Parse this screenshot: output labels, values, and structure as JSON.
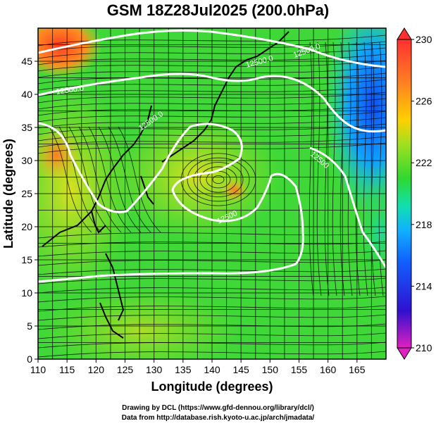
{
  "title": "GSM 18Z28Jul2025 (200.0hPa)",
  "x_axis_title": "Longitude (degrees)",
  "y_axis_title": "Latitude  (degrees)",
  "x_ticks": [
    "110",
    "115",
    "120",
    "125",
    "130",
    "135",
    "140",
    "145",
    "150",
    "155",
    "160",
    "165"
  ],
  "y_ticks": [
    "0",
    "5",
    "10",
    "15",
    "20",
    "25",
    "30",
    "35",
    "40",
    "45"
  ],
  "colorbar": {
    "labels": [
      "230",
      "226",
      "222",
      "218",
      "214",
      "210"
    ],
    "min": 210,
    "max": 230,
    "colors": [
      "#d400c8",
      "#2010c8",
      "#0090ff",
      "#00e0d0",
      "#30d830",
      "#a0e020",
      "#ffd000",
      "#ff8020",
      "#ff3030"
    ]
  },
  "contour_labels": [
    "12500.0",
    "12500.0",
    "12500.0",
    "12500.0",
    "12500",
    "12500"
  ],
  "credits": {
    "line1": "Drawing by DCL (https://www.gfd-dennou.org/library/dcl/)",
    "line2": "Data from http://database.rish.kyoto-u.ac.jp/arch/jmadata/"
  },
  "map": {
    "lon_range": [
      110,
      170
    ],
    "lat_range": [
      0,
      50
    ],
    "field": "temperature / geopotential height with streamlines"
  }
}
